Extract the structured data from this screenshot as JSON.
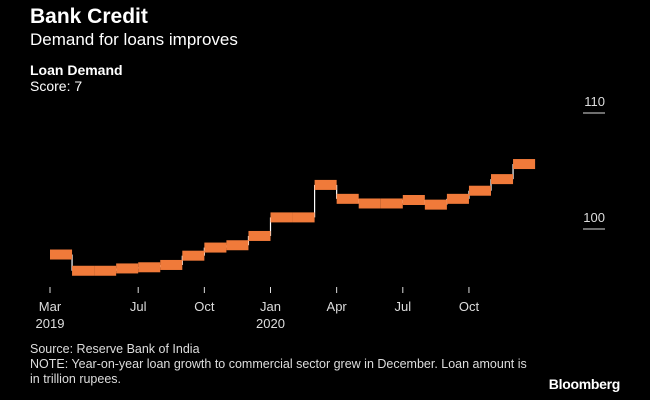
{
  "header": {
    "title": "Bank Credit",
    "subtitle": "Demand for loans improves"
  },
  "series_header": {
    "title": "Loan Demand",
    "score": "Score: 7"
  },
  "footer": {
    "source": "Source: Reserve Bank of India",
    "note": "NOTE: Year-on-year loan growth to commercial sector grew in December. Loan amount is in trillion rupees.",
    "logo": "Bloomberg"
  },
  "colors": {
    "series": "#f07a3a",
    "background": "#000000",
    "text": "#ffffff"
  },
  "chart_data": {
    "type": "line",
    "step": true,
    "title": "Loan Demand",
    "x": [
      "2019-03",
      "2019-04",
      "2019-05",
      "2019-06",
      "2019-07",
      "2019-08",
      "2019-09",
      "2019-10",
      "2019-11",
      "2019-12",
      "2020-01",
      "2020-02",
      "2020-03",
      "2020-04",
      "2020-05",
      "2020-06",
      "2020-07",
      "2020-08",
      "2020-09",
      "2020-10",
      "2020-11",
      "2020-12"
    ],
    "series": [
      {
        "values": [
          97.8,
          96.4,
          96.4,
          96.6,
          96.7,
          96.9,
          97.7,
          98.4,
          98.6,
          99.4,
          101.0,
          101.0,
          103.8,
          102.6,
          102.2,
          102.2,
          102.5,
          102.1,
          102.6,
          103.3,
          104.3,
          105.6
        ]
      }
    ],
    "ylim": [
      95,
      111
    ],
    "yticks": [
      {
        "label": "110",
        "value": 110
      },
      {
        "label": "100",
        "value": 100
      }
    ],
    "xticks": [
      {
        "month": "2019-03",
        "label": "Mar",
        "year": "2019"
      },
      {
        "month": "2019-07",
        "label": "Jul",
        "year": ""
      },
      {
        "month": "2019-10",
        "label": "Oct",
        "year": ""
      },
      {
        "month": "2020-01",
        "label": "Jan",
        "year": "2020"
      },
      {
        "month": "2020-04",
        "label": "Apr",
        "year": ""
      },
      {
        "month": "2020-07",
        "label": "Jul",
        "year": ""
      },
      {
        "month": "2020-10",
        "label": "Oct",
        "year": ""
      }
    ],
    "grid": false,
    "yaxis_position": "right"
  }
}
